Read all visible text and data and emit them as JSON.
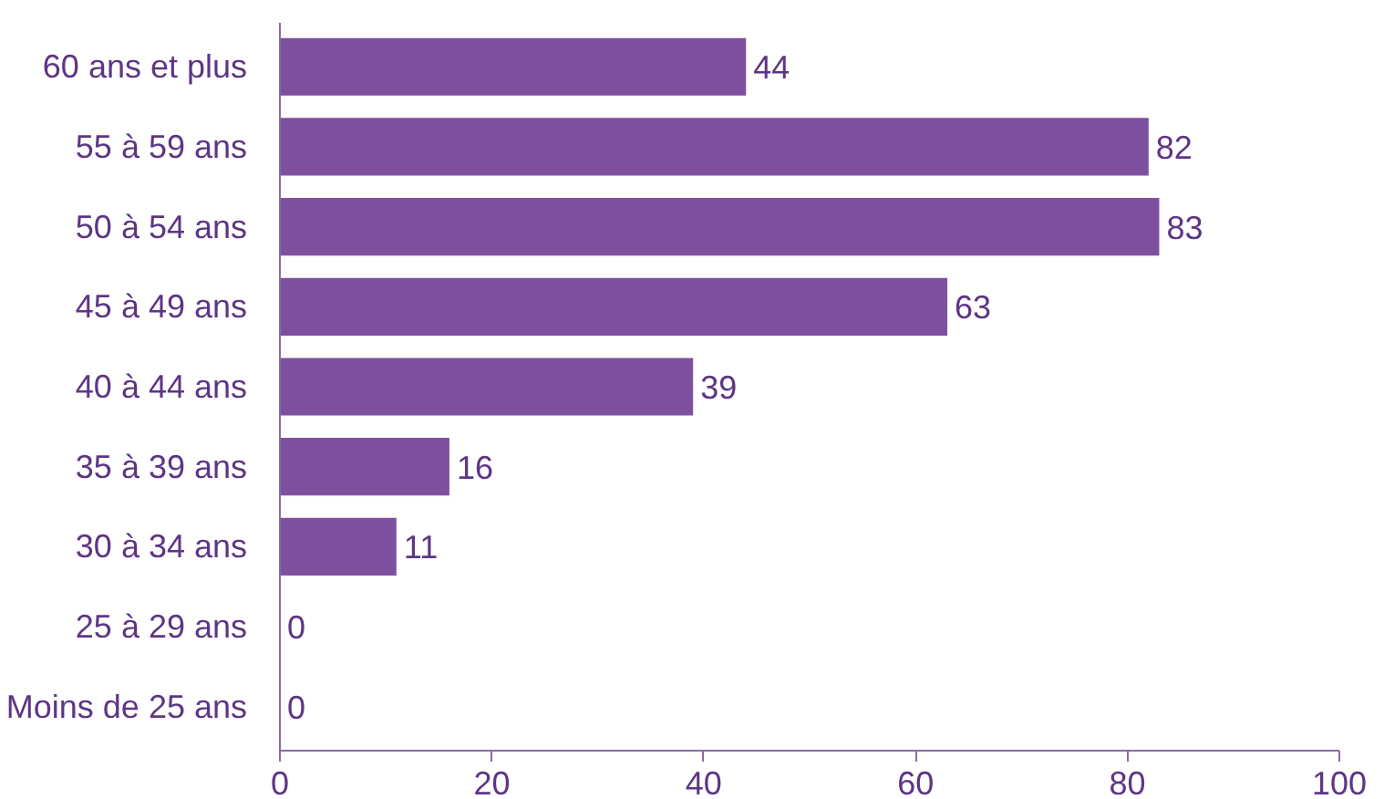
{
  "chart_data": {
    "type": "bar",
    "orientation": "horizontal",
    "categories": [
      "60 ans et plus",
      "55 à 59 ans",
      "50 à 54 ans",
      "45 à 49 ans",
      "40 à 44 ans",
      "35 à 39 ans",
      "30 à 34 ans",
      "25 à 29 ans",
      "Moins de 25 ans"
    ],
    "values": [
      44,
      82,
      83,
      63,
      39,
      16,
      11,
      0,
      0
    ],
    "color": "#7f4f9f",
    "xlim": [
      0,
      100
    ],
    "xticks": [
      0,
      20,
      40,
      60,
      80,
      100
    ],
    "data_labels": true,
    "grid": false
  }
}
